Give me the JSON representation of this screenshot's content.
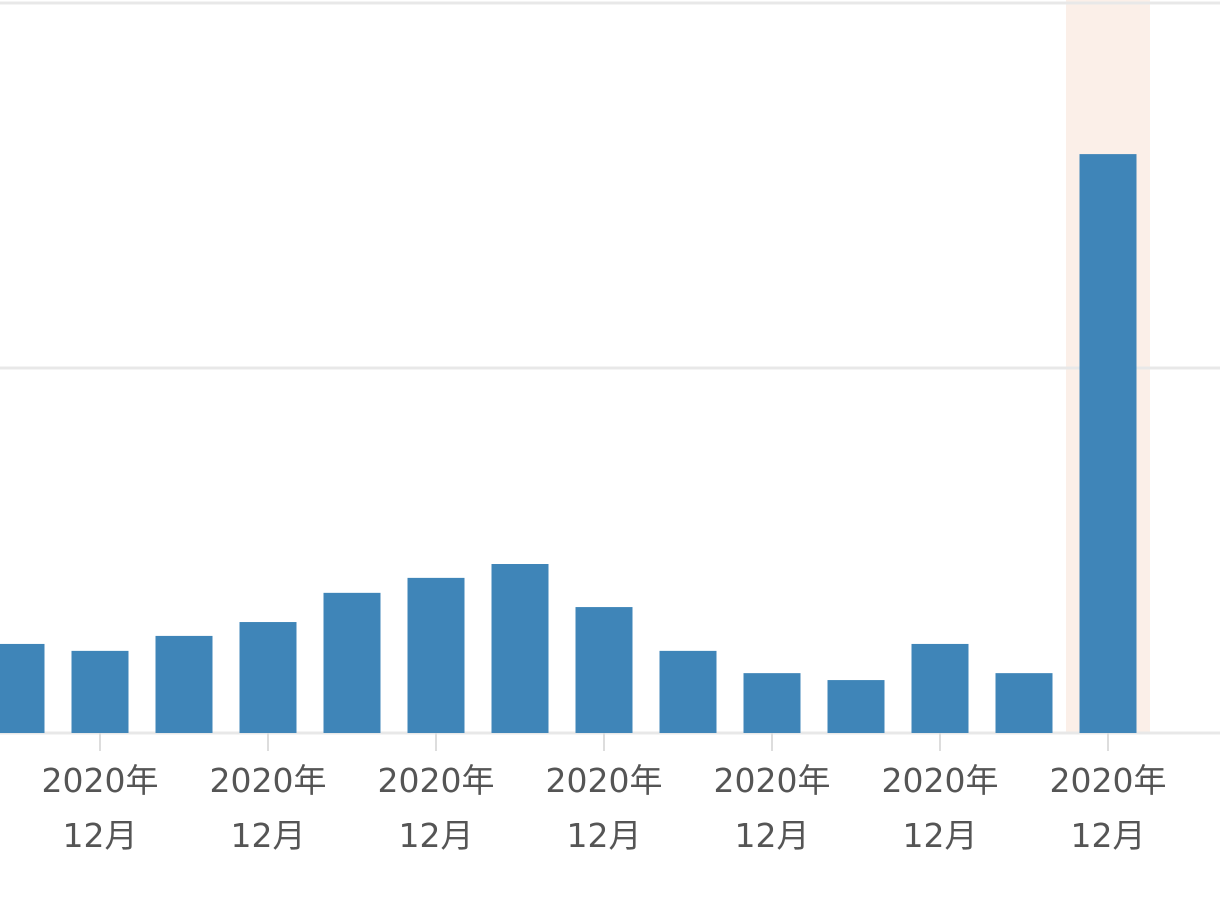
{
  "chart_data": {
    "type": "bar",
    "categories": [
      null,
      [
        "2020年",
        "12月"
      ],
      null,
      [
        "2020年",
        "12月"
      ],
      null,
      [
        "2020年",
        "12月"
      ],
      null,
      [
        "2020年",
        "12月"
      ],
      null,
      [
        "2020年",
        "12月"
      ],
      null,
      [
        "2020年",
        "12月"
      ],
      null,
      [
        "2020年",
        "12月"
      ]
    ],
    "values": [
      0.244,
      0.225,
      0.266,
      0.304,
      0.384,
      0.425,
      0.463,
      0.345,
      0.225,
      0.164,
      0.145,
      0.244,
      0.164,
      1.586
    ],
    "color": "#3f85b8",
    "ylim": [
      0,
      2
    ],
    "yticks": [
      0,
      1,
      2
    ],
    "show_tick_labels": false,
    "grid": true,
    "highlight": 13,
    "highlight_color": "#fbefe8"
  }
}
